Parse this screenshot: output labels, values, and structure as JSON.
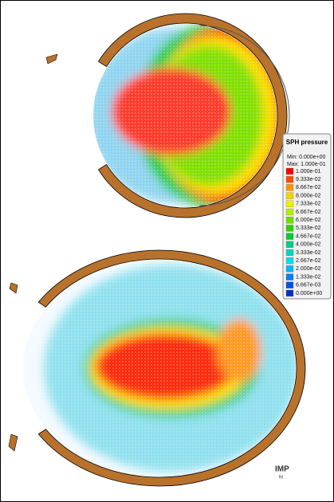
{
  "legend": {
    "title": "SPH pressure",
    "min": "Min: 0.000e+00",
    "max": "Max: 1.000e-01",
    "levels": [
      {
        "label": "1.000e-01",
        "color": "#ff0000"
      },
      {
        "label": "9.333e-02",
        "color": "#ff4a00"
      },
      {
        "label": "8.667e-02",
        "color": "#ff9400"
      },
      {
        "label": "8.000e-02",
        "color": "#ffd200"
      },
      {
        "label": "7.333e-02",
        "color": "#f0f000"
      },
      {
        "label": "6.667e-02",
        "color": "#b4ee00"
      },
      {
        "label": "6.000e-02",
        "color": "#6ee000"
      },
      {
        "label": "5.333e-02",
        "color": "#2ed400"
      },
      {
        "label": "4.667e-02",
        "color": "#00cc30"
      },
      {
        "label": "4.000e-02",
        "color": "#00d080"
      },
      {
        "label": "3.333e-02",
        "color": "#00d8c0"
      },
      {
        "label": "2.667e-02",
        "color": "#00e0f0"
      },
      {
        "label": "2.000e-02",
        "color": "#00b8ff"
      },
      {
        "label": "1.333e-02",
        "color": "#0080ff"
      },
      {
        "label": "6.667e-03",
        "color": "#0050f0"
      },
      {
        "label": "0.000e+00",
        "color": "#0030d0"
      }
    ]
  },
  "logo": {
    "main": "IMP",
    "sub": "ht"
  }
}
